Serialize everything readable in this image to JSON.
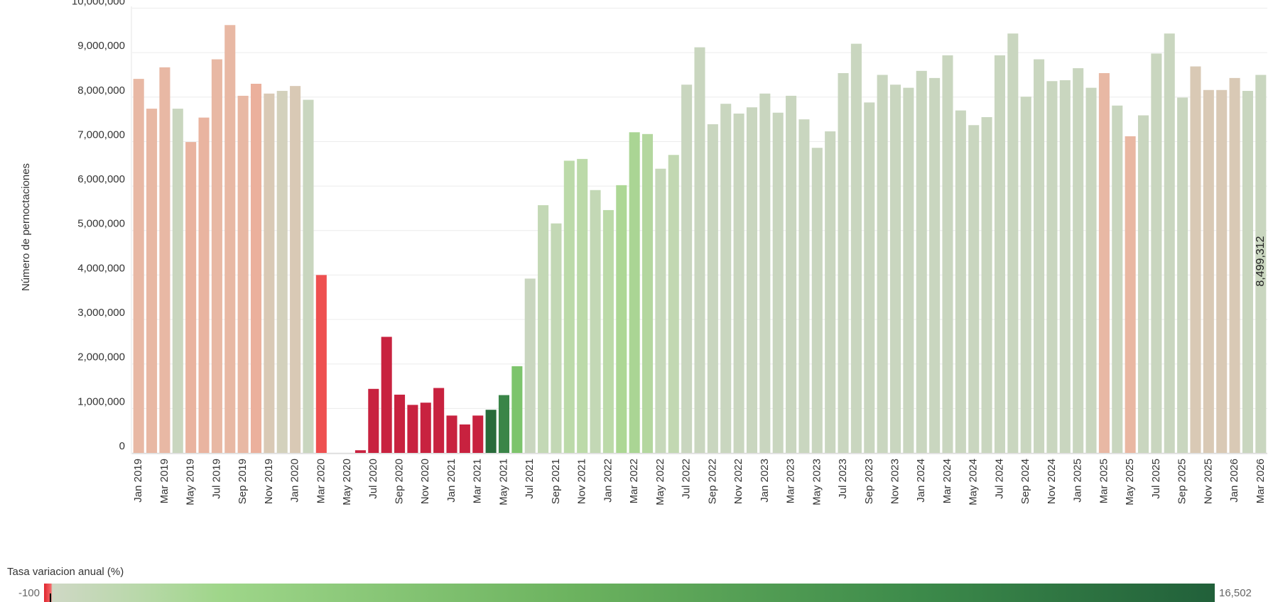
{
  "chart_data": {
    "type": "bar",
    "y_label": "Número de pernoctaciones",
    "categories": [
      "Jan 2019",
      null,
      "Mar 2019",
      null,
      "May 2019",
      null,
      "Jul 2019",
      null,
      "Sep 2019",
      null,
      "Nov 2019",
      null,
      "Jan 2020",
      null,
      "Mar 2020",
      null,
      "May 2020",
      null,
      "Jul 2020",
      null,
      "Sep 2020",
      null,
      "Nov 2020",
      null,
      "Jan 2021",
      null,
      "Mar 2021",
      null,
      "May 2021",
      null,
      "Jul 2021",
      null,
      "Sep 2021",
      null,
      "Nov 2021",
      null,
      "Jan 2022",
      null,
      "Mar 2022",
      null,
      "May 2022",
      null,
      "Jul 2022",
      null,
      "Sep 2022",
      null,
      "Nov 2022",
      null,
      "Jan 2023",
      null,
      "Mar 2023",
      null,
      "May 2023",
      null,
      "Jul 2023",
      null,
      "Sep 2023",
      null,
      "Nov 2023",
      null,
      "Jan 2024",
      null,
      "Mar 2024",
      null,
      "May 2024",
      null,
      "Jul 2024",
      null,
      "Sep 2024",
      null,
      "Nov 2024",
      null,
      "Jan 2025",
      null,
      "Mar 2025",
      null,
      "May 2025",
      null,
      "Jul 2025",
      null,
      "Sep 2025",
      null,
      "Nov 2025",
      null,
      "Jan 2026",
      null,
      "Mar 2026"
    ],
    "values": [
      8410000,
      7740000,
      8670000,
      7740000,
      6990000,
      7540000,
      8850000,
      9620000,
      8030000,
      8300000,
      8080000,
      8140000,
      8250000,
      7940000,
      4000000,
      0,
      0,
      60000,
      1440000,
      2610000,
      1310000,
      1080000,
      1130000,
      1460000,
      840000,
      640000,
      840000,
      970000,
      1300000,
      1950000,
      3920000,
      5570000,
      5160000,
      6570000,
      6610000,
      5910000,
      5460000,
      6020000,
      7210000,
      7170000,
      6390000,
      6700000,
      8280000,
      9120000,
      7390000,
      7850000,
      7630000,
      7770000,
      8080000,
      7650000,
      8030000,
      7500000,
      6860000,
      7230000,
      8540000,
      9200000,
      7880000,
      8500000,
      8280000,
      8210000,
      8590000,
      8430000,
      8940000,
      7700000,
      7370000,
      7550000,
      8940000,
      9430000,
      8010000,
      8850000,
      8360000,
      8380000,
      8650000,
      8210000,
      8540000,
      7810000,
      7120000,
      7590000,
      8980000,
      9430000,
      7990000,
      8690000,
      8160000,
      8160000,
      8430000,
      8140000,
      8499312
    ],
    "value_labels": [
      null,
      null,
      null,
      null,
      null,
      null,
      null,
      null,
      null,
      null,
      null,
      null,
      null,
      null,
      null,
      null,
      null,
      null,
      null,
      null,
      null,
      null,
      null,
      null,
      null,
      null,
      null,
      null,
      null,
      null,
      null,
      null,
      null,
      null,
      null,
      null,
      null,
      null,
      null,
      null,
      null,
      null,
      null,
      null,
      null,
      null,
      null,
      null,
      null,
      null,
      null,
      null,
      null,
      null,
      null,
      null,
      null,
      null,
      null,
      null,
      null,
      null,
      null,
      null,
      null,
      null,
      null,
      null,
      null,
      null,
      null,
      null,
      null,
      null,
      null,
      null,
      null,
      null,
      null,
      null,
      null,
      null,
      null,
      null,
      null,
      null,
      "8,499,312"
    ],
    "colors": [
      "#e8b8a4",
      "#e8b8a4",
      "#e8b8a4",
      "#c9d6bf",
      "#e9b39f",
      "#e9b4a0",
      "#e8b8a4",
      "#e8b8a4",
      "#e8b8a4",
      "#ebb09c",
      "#d9c9b5",
      "#d3d1bc",
      "#d9c9b5",
      "#c9d6bf",
      "#ee5050",
      "#c8213f",
      "#c8213f",
      "#c8213f",
      "#c8223f",
      "#c8223f",
      "#c8223f",
      "#c8223f",
      "#c8223f",
      "#c8223f",
      "#c8223f",
      "#c8223f",
      "#c8223f",
      "#286b3a",
      "#3a8548",
      "#7dc46c",
      "#c9d6bf",
      "#c3d8b5",
      "#c3d8b5",
      "#bcdaa9",
      "#bcdaa9",
      "#c3d8b5",
      "#bcdaa9",
      "#add795",
      "#aad594",
      "#b4d79f",
      "#c6d8ba",
      "#c2d8b2",
      "#c9d6bf",
      "#c9d6bf",
      "#c9d6bf",
      "#c9d6bf",
      "#c9d6bf",
      "#c9d6bf",
      "#c9d6bf",
      "#c9d6bf",
      "#c9d6bf",
      "#c9d6bf",
      "#c9d6bf",
      "#c9d6bf",
      "#c9d6bf",
      "#c9d6bf",
      "#c9d6bf",
      "#c9d6bf",
      "#c9d6bf",
      "#c9d6bf",
      "#c9d6bf",
      "#c9d6bf",
      "#c9d6bf",
      "#c9d6bf",
      "#c9d6bf",
      "#c9d6bf",
      "#c9d6bf",
      "#c9d6bf",
      "#c9d6bf",
      "#c9d6bf",
      "#c9d6bf",
      "#c9d6bf",
      "#c9d6bf",
      "#c9d6bf",
      "#e8b8a4",
      "#c9d6bf",
      "#e9b7a2",
      "#c9d6bf",
      "#c9d6bf",
      "#c9d6bf",
      "#c9d6bf",
      "#d9c9b5",
      "#d9c9b5",
      "#d9c9b5",
      "#d9c9b5",
      "#c9d6bf",
      "#c9d6bf"
    ],
    "ylim": [
      0,
      10040000
    ],
    "yticks": [
      0,
      {
        "value": 1000000,
        "label": "1,000,000"
      },
      {
        "value": 2000000,
        "label": "2,000,000"
      },
      {
        "value": 3000000,
        "label": "3,000,000"
      },
      {
        "value": 4000000,
        "label": "4,000,000"
      },
      {
        "value": 5000000,
        "label": "5,000,000"
      },
      {
        "value": 6000000,
        "label": "6,000,000"
      },
      {
        "value": 7000000,
        "label": "7,000,000"
      },
      {
        "value": 8000000,
        "label": "8,000,000"
      },
      {
        "value": 9000000,
        "label": "9,000,000"
      },
      {
        "value": 10000000,
        "label": "10,000,000"
      }
    ],
    "grid": true,
    "color_scale": {
      "title": "Tasa variacion anual (%)",
      "min": -100,
      "max": {
        "value": 16502,
        "label": "16,502"
      }
    }
  }
}
